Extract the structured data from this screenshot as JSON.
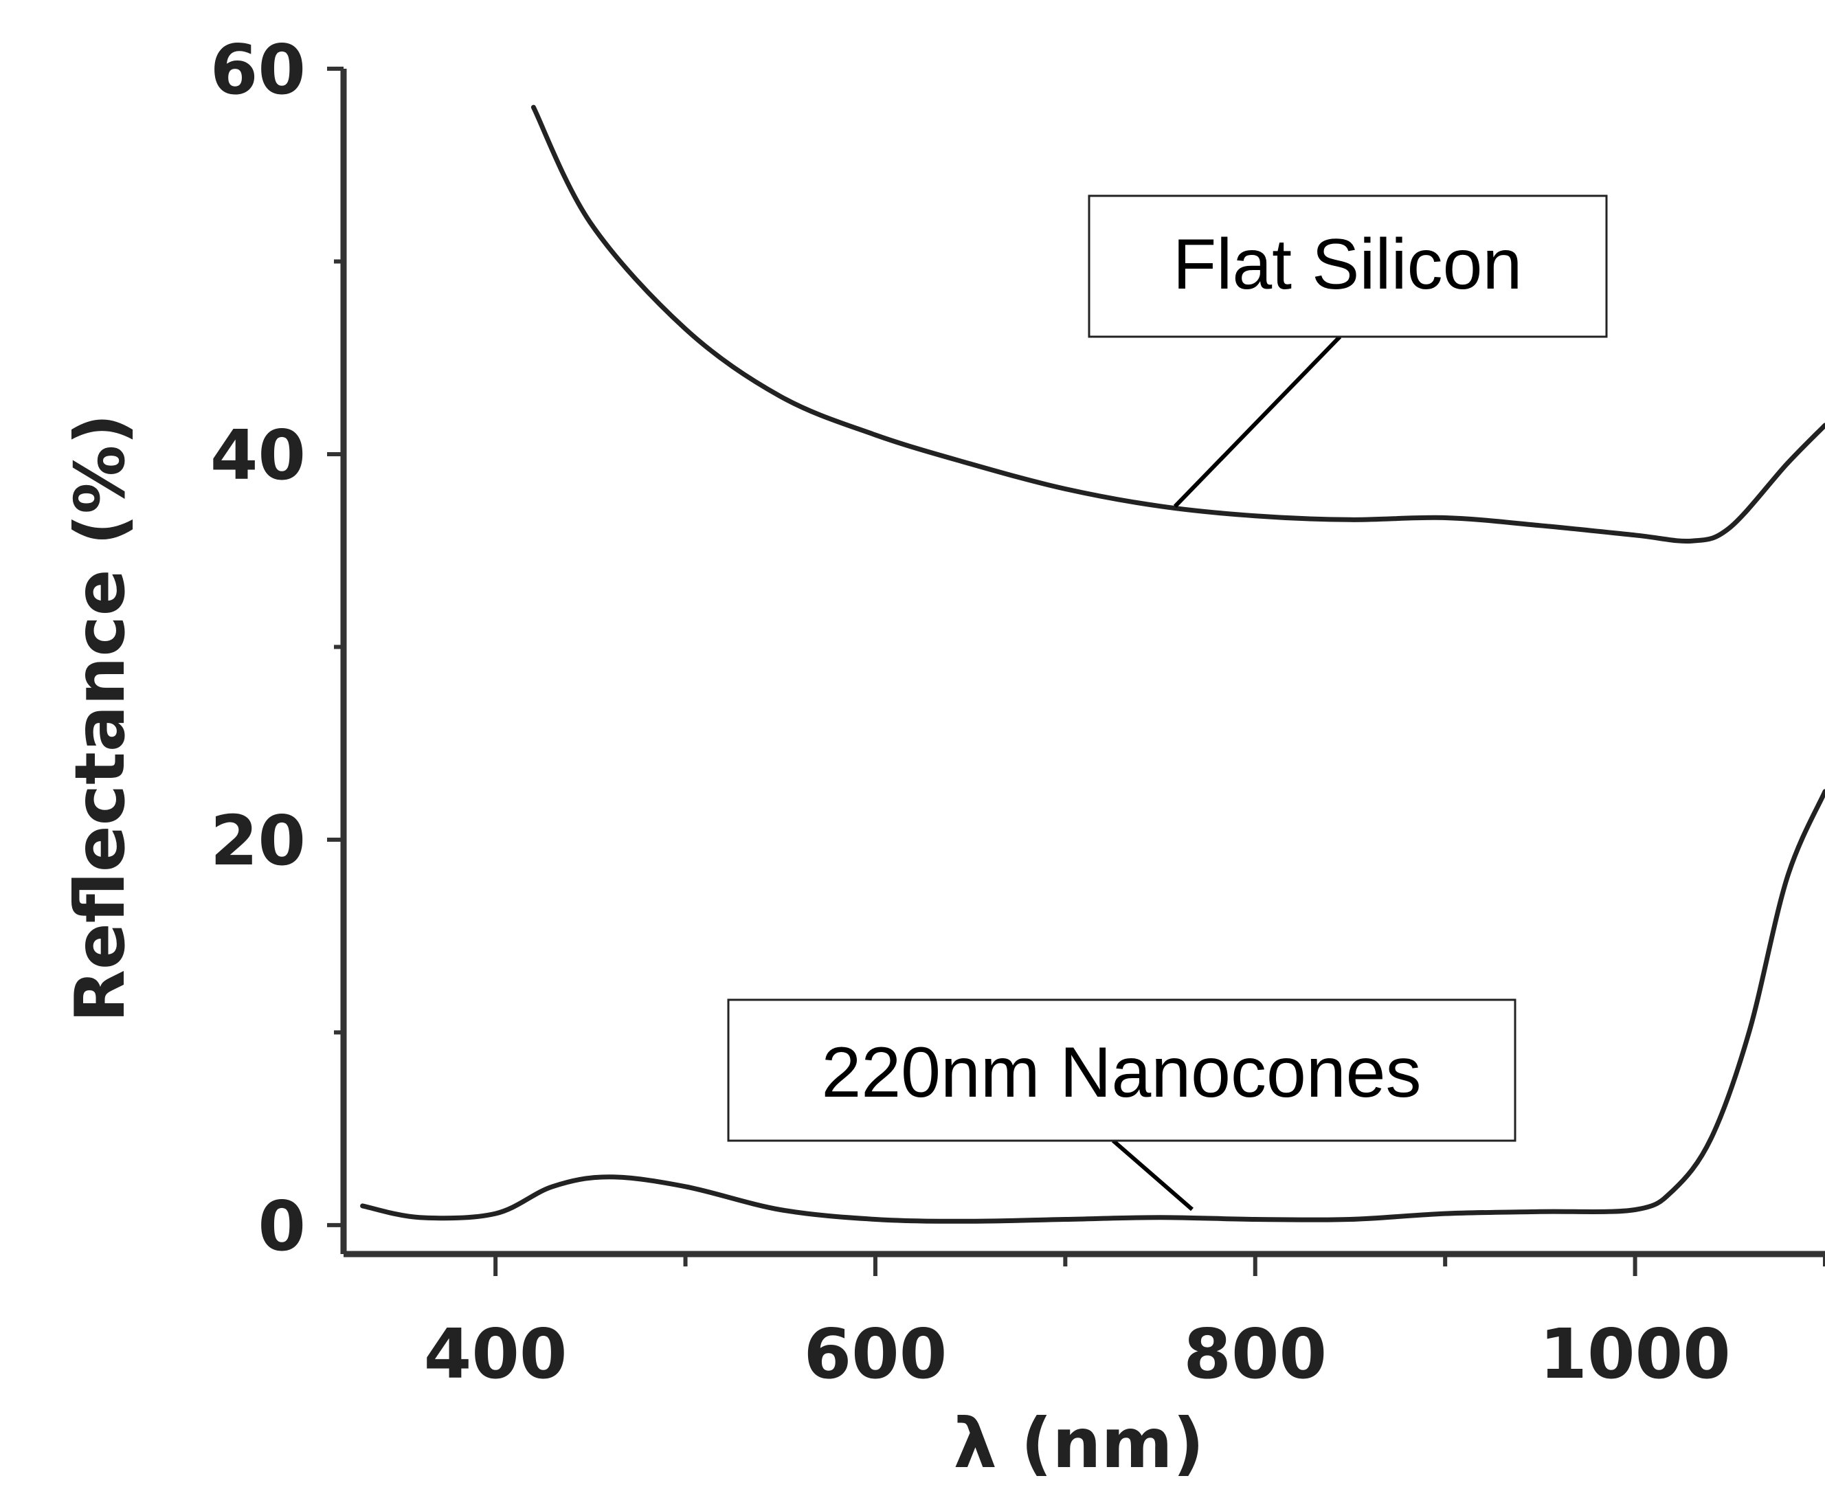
{
  "chart_data": {
    "type": "line",
    "title": "",
    "xlabel": "λ (nm)",
    "ylabel": "Reflectance (%)",
    "xlim": [
      320,
      1100
    ],
    "ylim": [
      -1.5,
      60
    ],
    "xticks": [
      400,
      600,
      800,
      1000
    ],
    "yticks": [
      0,
      20,
      40,
      60
    ],
    "grid": false,
    "legend": "none",
    "series": [
      {
        "name": "Flat Silicon",
        "x": [
          420,
          450,
          500,
          550,
          600,
          650,
          700,
          750,
          800,
          850,
          900,
          950,
          1000,
          1030,
          1050,
          1080,
          1100
        ],
        "y": [
          58,
          52,
          46.5,
          43,
          41,
          39.5,
          38.2,
          37.3,
          36.8,
          36.6,
          36.7,
          36.3,
          35.8,
          35.5,
          36.2,
          39.5,
          41.5
        ]
      },
      {
        "name": "220nm Nanocones",
        "x": [
          330,
          360,
          400,
          430,
          460,
          500,
          550,
          600,
          650,
          700,
          750,
          800,
          850,
          900,
          950,
          1000,
          1020,
          1040,
          1060,
          1080,
          1100
        ],
        "y": [
          1.0,
          0.4,
          0.6,
          2.0,
          2.5,
          2.0,
          0.8,
          0.3,
          0.2,
          0.3,
          0.4,
          0.3,
          0.3,
          0.6,
          0.7,
          0.8,
          1.8,
          4.5,
          10.0,
          18.0,
          22.5
        ]
      }
    ],
    "annotations": [
      "Flat Silicon",
      "220nm Nanocones"
    ]
  }
}
